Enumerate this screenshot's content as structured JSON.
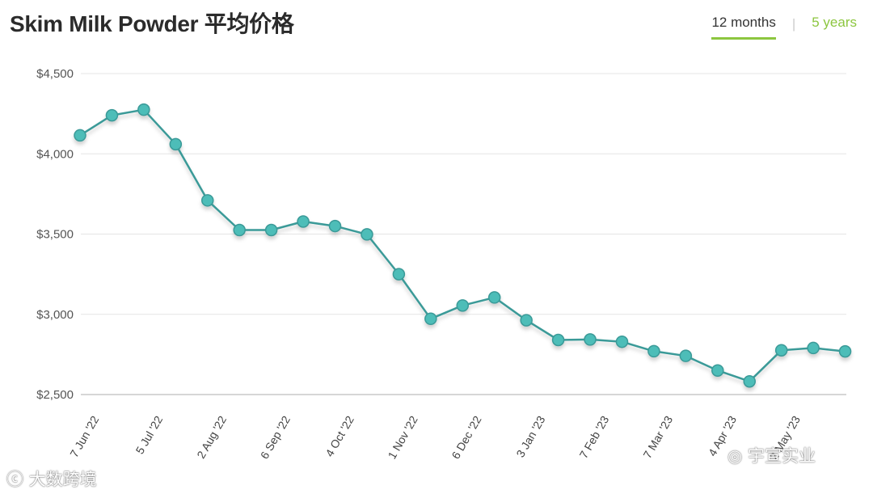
{
  "title": "Skim Milk Powder 平均价格",
  "tabs": [
    {
      "label": "12 months",
      "active": true
    },
    {
      "label": "5 years",
      "active": false
    }
  ],
  "colors": {
    "line": "#3a9a98",
    "marker": "#4dbdb8",
    "accent": "#8cc63f",
    "grid": "#e5e5e5"
  },
  "watermarks": {
    "left": "大数跨境",
    "right": "宇宣实业"
  },
  "chart_data": {
    "type": "line",
    "title": "Skim Milk Powder 平均价格",
    "xlabel": "",
    "ylabel": "",
    "ylim": [
      2500,
      4500
    ],
    "yticks": [
      2500,
      3000,
      3500,
      4000,
      4500
    ],
    "ytick_labels": [
      "$2,500",
      "$3,000",
      "$3,500",
      "$4,000",
      "$4,500"
    ],
    "grid": true,
    "xtick_labels": [
      {
        "index": 0.5,
        "label": "7 Jun '22"
      },
      {
        "index": 2.5,
        "label": "5 Jul '22"
      },
      {
        "index": 4.5,
        "label": "2 Aug '22"
      },
      {
        "index": 6.5,
        "label": "6 Sep '22"
      },
      {
        "index": 8.5,
        "label": "4 Oct '22"
      },
      {
        "index": 10.5,
        "label": "1 Nov '22"
      },
      {
        "index": 12.5,
        "label": "6 Dec '22"
      },
      {
        "index": 14.5,
        "label": "3 Jan '23"
      },
      {
        "index": 16.5,
        "label": "7 Feb '23"
      },
      {
        "index": 18.5,
        "label": "7 Mar '23"
      },
      {
        "index": 20.5,
        "label": "4 Apr '23"
      },
      {
        "index": 22.5,
        "label": "2 May '23"
      }
    ],
    "series": [
      {
        "values": [
          4115,
          4240,
          4275,
          4060,
          3710,
          3525,
          3525,
          3578,
          3550,
          3498,
          3250,
          2972,
          3055,
          3105,
          2963,
          2840,
          2843,
          2829,
          2770,
          2741,
          2650,
          2582,
          2776,
          2790,
          2769
        ]
      }
    ]
  }
}
